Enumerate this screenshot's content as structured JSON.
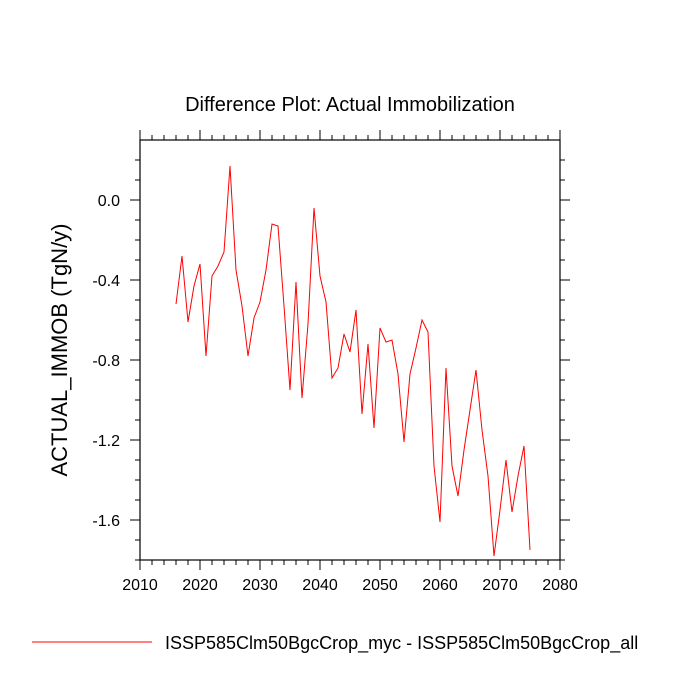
{
  "chart_data": {
    "type": "line",
    "title": "Difference Plot: Actual Immobilization",
    "xlabel": "",
    "ylabel": "ACTUAL_IMMOB  (TgN/y)",
    "xlim": [
      2010,
      2080
    ],
    "ylim": [
      -1.8,
      0.3
    ],
    "xticks": [
      2010,
      2020,
      2030,
      2040,
      2050,
      2060,
      2070,
      2080
    ],
    "yticks": [
      0.0,
      -0.4,
      -0.8,
      -1.2,
      -1.6
    ],
    "yticklabels": [
      "0.0",
      "-0.4",
      "-0.8",
      "-1.2",
      "-1.6"
    ],
    "grid": false,
    "legend_position": "bottom",
    "series": [
      {
        "name": "ISSP585Clm50BgcCrop_myc - ISSP585Clm50BgcCrop_all",
        "color": "#ff0000",
        "x": [
          2016,
          2017,
          2018,
          2019,
          2020,
          2021,
          2022,
          2023,
          2024,
          2025,
          2026,
          2027,
          2028,
          2029,
          2030,
          2031,
          2032,
          2033,
          2034,
          2035,
          2036,
          2037,
          2038,
          2039,
          2040,
          2041,
          2042,
          2043,
          2044,
          2045,
          2046,
          2047,
          2048,
          2049,
          2050,
          2051,
          2052,
          2053,
          2054,
          2055,
          2056,
          2057,
          2058,
          2059,
          2060,
          2061,
          2062,
          2063,
          2064,
          2065,
          2066,
          2067,
          2068,
          2069,
          2070,
          2071,
          2072,
          2073,
          2074,
          2075
        ],
        "y": [
          -0.52,
          -0.28,
          -0.61,
          -0.43,
          -0.32,
          -0.78,
          -0.38,
          -0.33,
          -0.26,
          0.17,
          -0.35,
          -0.53,
          -0.78,
          -0.59,
          -0.51,
          -0.35,
          -0.12,
          -0.13,
          -0.53,
          -0.95,
          -0.41,
          -0.99,
          -0.62,
          -0.04,
          -0.38,
          -0.51,
          -0.89,
          -0.84,
          -0.67,
          -0.76,
          -0.55,
          -1.07,
          -0.72,
          -1.14,
          -0.64,
          -0.71,
          -0.7,
          -0.87,
          -1.21,
          -0.87,
          -0.74,
          -0.6,
          -0.66,
          -1.33,
          -1.61,
          -0.84,
          -1.33,
          -1.48,
          -1.25,
          -1.05,
          -0.85,
          -1.15,
          -1.38,
          -1.78,
          -1.55,
          -1.3,
          -1.56,
          -1.38,
          -1.23,
          -1.75
        ]
      }
    ]
  }
}
